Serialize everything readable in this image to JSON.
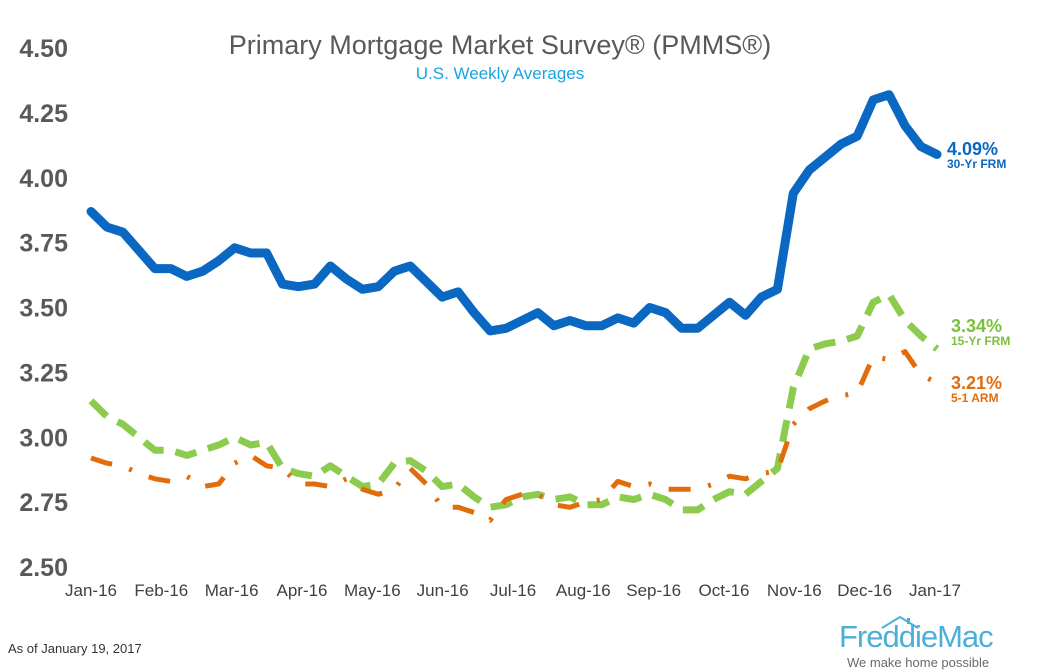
{
  "header": {
    "title": "Primary Mortgage Market Survey® (PMMS®)",
    "subtitle": "U.S. Weekly Averages"
  },
  "footer": {
    "as_of": "As of January 19, 2017",
    "brand": "FreddieMac",
    "tagline": "We make home possible"
  },
  "colors": {
    "frm30": "#0A67C2",
    "frm15": "#8CCB4E",
    "arm51": "#E36C0A",
    "title": "#595959",
    "subtitle": "#1AA3E0",
    "brand": "#4BAFD8"
  },
  "chart_data": {
    "type": "line",
    "title": "Primary Mortgage Market Survey® (PMMS®)",
    "subtitle": "U.S. Weekly Averages",
    "xlabel": "",
    "ylabel": "",
    "ylim": [
      2.5,
      4.5
    ],
    "yticks": [
      "2.50",
      "2.75",
      "3.00",
      "3.25",
      "3.50",
      "3.75",
      "4.00",
      "4.25",
      "4.50"
    ],
    "xticks": [
      "Jan-16",
      "Feb-16",
      "Mar-16",
      "Apr-16",
      "May-16",
      "Jun-16",
      "Jul-16",
      "Aug-16",
      "Sep-16",
      "Oct-16",
      "Nov-16",
      "Dec-16",
      "Jan-17"
    ],
    "grid": false,
    "legend": "end-labels",
    "series": [
      {
        "name": "30-Yr FRM",
        "end_value": "4.09%",
        "style": "solid",
        "values": [
          3.87,
          3.81,
          3.79,
          3.72,
          3.65,
          3.65,
          3.62,
          3.64,
          3.68,
          3.73,
          3.71,
          3.71,
          3.59,
          3.58,
          3.59,
          3.66,
          3.61,
          3.57,
          3.58,
          3.64,
          3.66,
          3.6,
          3.54,
          3.56,
          3.48,
          3.41,
          3.42,
          3.45,
          3.48,
          3.43,
          3.45,
          3.43,
          3.43,
          3.46,
          3.44,
          3.5,
          3.48,
          3.42,
          3.42,
          3.47,
          3.52,
          3.47,
          3.54,
          3.57,
          3.94,
          4.03,
          4.08,
          4.13,
          4.16,
          4.3,
          4.32,
          4.2,
          4.12,
          4.09
        ]
      },
      {
        "name": "15-Yr FRM",
        "end_value": "3.34%",
        "style": "dashed",
        "values": [
          3.14,
          3.08,
          3.05,
          3.0,
          2.95,
          2.95,
          2.93,
          2.95,
          2.97,
          3.0,
          2.97,
          2.98,
          2.88,
          2.86,
          2.85,
          2.89,
          2.85,
          2.81,
          2.82,
          2.9,
          2.91,
          2.87,
          2.81,
          2.82,
          2.77,
          2.73,
          2.74,
          2.77,
          2.78,
          2.76,
          2.77,
          2.74,
          2.74,
          2.77,
          2.76,
          2.78,
          2.76,
          2.72,
          2.72,
          2.76,
          2.79,
          2.78,
          2.83,
          2.88,
          3.19,
          3.34,
          3.36,
          3.37,
          3.39,
          3.52,
          3.55,
          3.45,
          3.39,
          3.34
        ]
      },
      {
        "name": "5-1 ARM",
        "end_value": "3.21%",
        "style": "dash-dot",
        "values": [
          2.92,
          2.9,
          2.89,
          2.86,
          2.84,
          2.83,
          2.85,
          2.81,
          2.82,
          2.9,
          2.93,
          2.89,
          2.88,
          2.82,
          2.82,
          2.81,
          2.84,
          2.8,
          2.78,
          2.8,
          2.88,
          2.82,
          2.73,
          2.73,
          2.71,
          2.68,
          2.76,
          2.78,
          2.78,
          2.74,
          2.73,
          2.75,
          2.76,
          2.83,
          2.81,
          2.82,
          2.8,
          2.8,
          2.8,
          2.82,
          2.85,
          2.84,
          2.86,
          2.87,
          3.05,
          3.11,
          3.14,
          3.16,
          3.17,
          3.31,
          3.3,
          3.33,
          3.24,
          3.21
        ]
      }
    ]
  }
}
